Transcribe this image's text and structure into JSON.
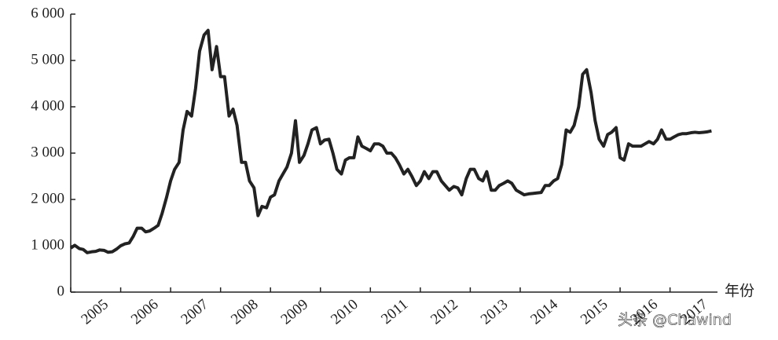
{
  "chart_data": {
    "type": "line",
    "x_label": "年份",
    "watermark": "头条 @Chawind",
    "x": [
      2005.0,
      2005.08,
      2005.17,
      2005.25,
      2005.33,
      2005.42,
      2005.5,
      2005.58,
      2005.67,
      2005.75,
      2005.83,
      2005.92,
      2006.0,
      2006.08,
      2006.17,
      2006.25,
      2006.33,
      2006.42,
      2006.5,
      2006.58,
      2006.67,
      2006.75,
      2006.83,
      2006.92,
      2007.0,
      2007.08,
      2007.17,
      2007.25,
      2007.33,
      2007.42,
      2007.5,
      2007.58,
      2007.67,
      2007.75,
      2007.83,
      2007.92,
      2008.0,
      2008.08,
      2008.17,
      2008.25,
      2008.33,
      2008.42,
      2008.5,
      2008.58,
      2008.67,
      2008.75,
      2008.83,
      2008.92,
      2009.0,
      2009.08,
      2009.17,
      2009.25,
      2009.33,
      2009.42,
      2009.5,
      2009.58,
      2009.67,
      2009.75,
      2009.83,
      2009.92,
      2010.0,
      2010.08,
      2010.17,
      2010.25,
      2010.33,
      2010.42,
      2010.5,
      2010.58,
      2010.67,
      2010.75,
      2010.83,
      2010.92,
      2011.0,
      2011.08,
      2011.17,
      2011.25,
      2011.33,
      2011.42,
      2011.5,
      2011.58,
      2011.67,
      2011.75,
      2011.83,
      2011.92,
      2012.0,
      2012.08,
      2012.17,
      2012.25,
      2012.33,
      2012.42,
      2012.5,
      2012.58,
      2012.67,
      2012.75,
      2012.83,
      2012.92,
      2013.0,
      2013.08,
      2013.17,
      2013.25,
      2013.33,
      2013.42,
      2013.5,
      2013.58,
      2013.67,
      2013.75,
      2013.83,
      2013.92,
      2014.0,
      2014.08,
      2014.17,
      2014.25,
      2014.33,
      2014.42,
      2014.5,
      2014.58,
      2014.67,
      2014.75,
      2014.83,
      2014.92,
      2015.0,
      2015.08,
      2015.17,
      2015.25,
      2015.33,
      2015.42,
      2015.5,
      2015.58,
      2015.67,
      2015.75,
      2015.83,
      2015.92,
      2016.0,
      2016.08,
      2016.17,
      2016.25,
      2016.33,
      2016.42,
      2016.5,
      2016.58,
      2016.67,
      2016.75,
      2016.83,
      2016.92,
      2017.0,
      2017.08,
      2017.17,
      2017.25,
      2017.33,
      2017.42,
      2017.5,
      2017.58,
      2017.67,
      2017.75,
      2017.83
    ],
    "series": [
      {
        "color": "#222222",
        "values": [
          950,
          1010,
          940,
          920,
          850,
          870,
          880,
          910,
          900,
          860,
          870,
          930,
          1000,
          1040,
          1060,
          1200,
          1380,
          1380,
          1300,
          1320,
          1380,
          1440,
          1700,
          2050,
          2400,
          2650,
          2800,
          3500,
          3900,
          3800,
          4400,
          5200,
          5550,
          5650,
          4800,
          5300,
          4650,
          4650,
          3800,
          3950,
          3600,
          2800,
          2800,
          2400,
          2250,
          1650,
          1850,
          1820,
          2050,
          2100,
          2400,
          2550,
          2700,
          3000,
          3700,
          2800,
          2950,
          3200,
          3500,
          3550,
          3200,
          3280,
          3300,
          3000,
          2650,
          2550,
          2850,
          2900,
          2900,
          3350,
          3150,
          3100,
          3050,
          3200,
          3200,
          3150,
          3000,
          3000,
          2900,
          2750,
          2550,
          2650,
          2500,
          2300,
          2400,
          2600,
          2450,
          2600,
          2600,
          2400,
          2300,
          2200,
          2280,
          2250,
          2100,
          2450,
          2650,
          2650,
          2450,
          2400,
          2600,
          2200,
          2200,
          2300,
          2350,
          2400,
          2350,
          2200,
          2150,
          2100,
          2120,
          2130,
          2140,
          2150,
          2300,
          2300,
          2400,
          2450,
          2750,
          3500,
          3450,
          3600,
          4000,
          4700,
          4800,
          4300,
          3700,
          3300,
          3150,
          3400,
          3450,
          3550,
          2900,
          2850,
          3200,
          3150,
          3150,
          3150,
          3200,
          3250,
          3200,
          3300,
          3500,
          3300,
          3300,
          3350,
          3400,
          3420,
          3420,
          3440,
          3450,
          3440,
          3450,
          3460,
          3480
        ]
      }
    ],
    "xlim": [
      2005,
      2017.95
    ],
    "xticks": [
      2005,
      2006,
      2007,
      2008,
      2009,
      2010,
      2011,
      2012,
      2013,
      2014,
      2015,
      2016,
      2017
    ],
    "ylim": [
      0,
      6000
    ],
    "yticks": [
      0,
      {
        "value": 1000,
        "label": "1 000"
      },
      {
        "value": 2000,
        "label": "2 000"
      },
      {
        "value": 3000,
        "label": "3 000"
      },
      {
        "value": 4000,
        "label": "4 000"
      },
      {
        "value": 5000,
        "label": "5 000"
      },
      {
        "value": 6000,
        "label": "6 000"
      }
    ],
    "grid": false
  }
}
